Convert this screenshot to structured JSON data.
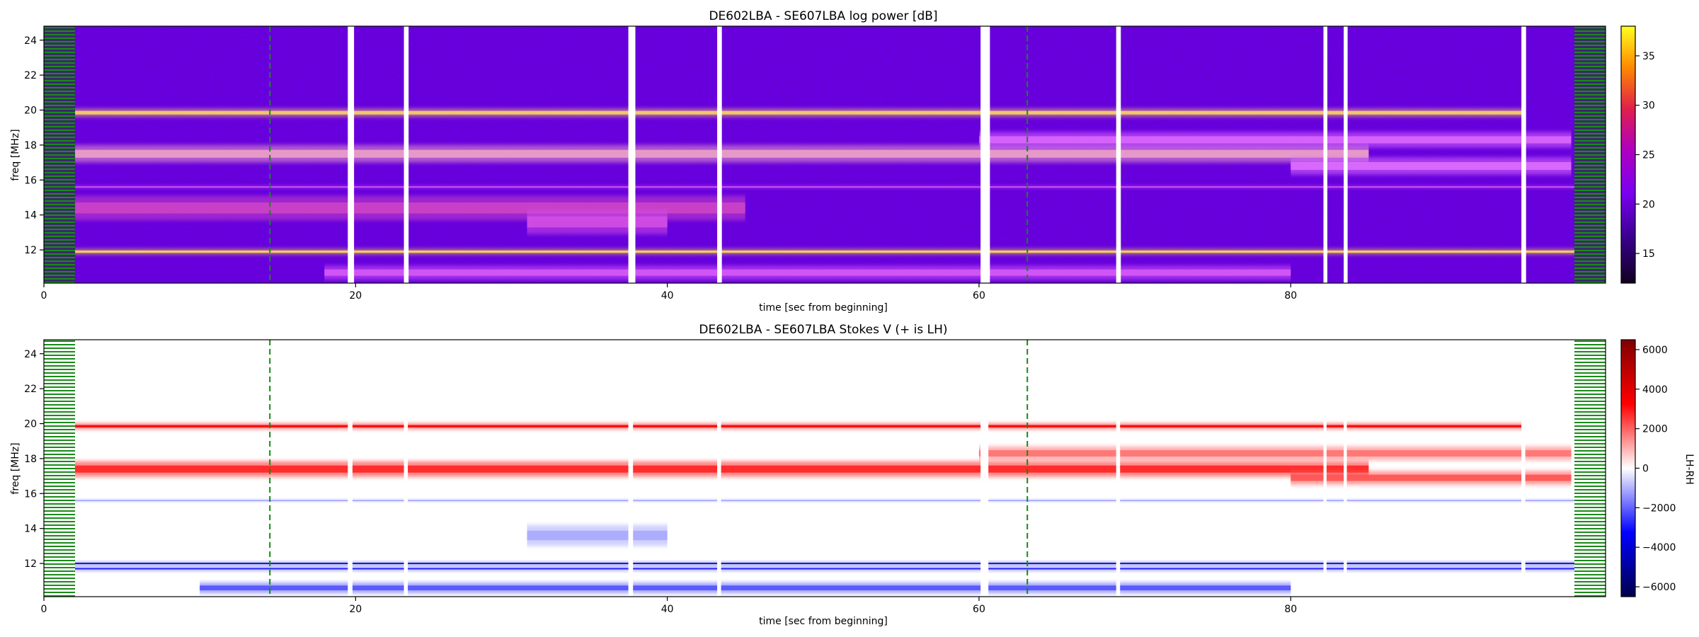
{
  "chart_data": [
    {
      "type": "heatmap",
      "title": "DE602LBA - SE607LBA  log power [dB]",
      "xlabel": "time [sec from beginning]",
      "ylabel": "freq [MHz]",
      "xlim": [
        0,
        100.2
      ],
      "ylim": [
        10.1,
        24.8
      ],
      "xticks": [
        0,
        20,
        40,
        60,
        80
      ],
      "yticks": [
        12,
        14,
        16,
        18,
        20,
        22,
        24
      ],
      "colorbar": {
        "ticks": [
          15,
          20,
          25,
          30,
          35
        ],
        "range": [
          12,
          38
        ],
        "colormap": "gnuplot",
        "label": ""
      },
      "background_color": "#6a00e8",
      "bands": [
        {
          "freq_center": 19.85,
          "freq_width": 0.45,
          "intensity": 0.9,
          "x_range": [
            0,
            95
          ]
        },
        {
          "freq_center": 17.5,
          "freq_width": 1.0,
          "intensity": 0.78,
          "x_range": [
            2,
            85
          ]
        },
        {
          "freq_center": 18.3,
          "freq_width": 0.9,
          "intensity": 0.6,
          "x_range": [
            60,
            98
          ]
        },
        {
          "freq_center": 16.8,
          "freq_width": 1.0,
          "intensity": 0.62,
          "x_range": [
            80,
            98
          ]
        },
        {
          "freq_center": 11.9,
          "freq_width": 0.3,
          "intensity": 0.92,
          "x_range": [
            0,
            100
          ]
        },
        {
          "freq_center": 15.6,
          "freq_width": 0.12,
          "intensity": 0.55,
          "x_range": [
            0,
            100
          ]
        },
        {
          "freq_center": 14.4,
          "freq_width": 1.4,
          "intensity": 0.45,
          "x_range": [
            0,
            45
          ]
        },
        {
          "freq_center": 13.6,
          "freq_width": 1.4,
          "intensity": 0.5,
          "x_range": [
            31,
            40
          ]
        },
        {
          "freq_center": 10.7,
          "freq_width": 0.8,
          "intensity": 0.55,
          "x_range": [
            18,
            80
          ]
        }
      ],
      "gaps": [
        {
          "x": 19.5,
          "w": 0.4
        },
        {
          "x": 23.1,
          "w": 0.3
        },
        {
          "x": 37.5,
          "w": 0.45
        },
        {
          "x": 43.2,
          "w": 0.3
        },
        {
          "x": 60.1,
          "w": 0.6
        },
        {
          "x": 68.8,
          "w": 0.3
        },
        {
          "x": 82.1,
          "w": 0.25
        },
        {
          "x": 83.4,
          "w": 0.25
        },
        {
          "x": 94.8,
          "w": 0.3
        }
      ],
      "markers": [
        14.5,
        63.1
      ],
      "flagged_time_ranges": [
        [
          0,
          2
        ],
        [
          98.2,
          100.2
        ]
      ]
    },
    {
      "type": "heatmap",
      "title": "DE602LBA - SE607LBA    Stokes V (+ is LH)",
      "xlabel": "time [sec from beginning]",
      "ylabel": "freq [MHz]",
      "xlim": [
        0,
        100.2
      ],
      "ylim": [
        10.1,
        24.8
      ],
      "xticks": [
        0,
        20,
        40,
        60,
        80
      ],
      "yticks": [
        12,
        14,
        16,
        18,
        20,
        22,
        24
      ],
      "colorbar": {
        "ticks": [
          6000,
          4000,
          2000,
          0,
          -2000,
          -4000,
          -6000
        ],
        "range": [
          -6500,
          6500
        ],
        "colormap": "seismic",
        "label": "LH-RH"
      },
      "background_color": "#ffffff",
      "bands": [
        {
          "freq_center": 19.85,
          "freq_width": 0.3,
          "value": 3500,
          "x_range": [
            0,
            95
          ]
        },
        {
          "freq_center": 17.4,
          "freq_width": 0.9,
          "value": 2800,
          "x_range": [
            2,
            85
          ]
        },
        {
          "freq_center": 18.3,
          "freq_width": 0.8,
          "value": 1800,
          "x_range": [
            60,
            98
          ]
        },
        {
          "freq_center": 16.9,
          "freq_width": 0.8,
          "value": 2200,
          "x_range": [
            80,
            98
          ]
        },
        {
          "freq_center": 12.0,
          "freq_width": 0.12,
          "value": -4500,
          "x_range": [
            0,
            100
          ]
        },
        {
          "freq_center": 11.7,
          "freq_width": 0.15,
          "value": -3000,
          "x_range": [
            0,
            100
          ]
        },
        {
          "freq_center": 15.6,
          "freq_width": 0.1,
          "value": -1200,
          "x_range": [
            0,
            100
          ]
        },
        {
          "freq_center": 13.6,
          "freq_width": 1.2,
          "value": -1100,
          "x_range": [
            31,
            40
          ]
        },
        {
          "freq_center": 10.6,
          "freq_width": 0.6,
          "value": -2200,
          "x_range": [
            10,
            80
          ]
        }
      ],
      "gaps": [
        {
          "x": 19.5,
          "w": 0.3
        },
        {
          "x": 23.1,
          "w": 0.25
        },
        {
          "x": 37.5,
          "w": 0.3
        },
        {
          "x": 43.2,
          "w": 0.25
        },
        {
          "x": 60.1,
          "w": 0.5
        },
        {
          "x": 68.8,
          "w": 0.25
        },
        {
          "x": 82.1,
          "w": 0.2
        },
        {
          "x": 83.4,
          "w": 0.2
        },
        {
          "x": 94.8,
          "w": 0.25
        }
      ],
      "markers": [
        14.5,
        63.1
      ],
      "flagged_time_ranges": [
        [
          0,
          2
        ],
        [
          98.2,
          100.2
        ]
      ]
    }
  ]
}
